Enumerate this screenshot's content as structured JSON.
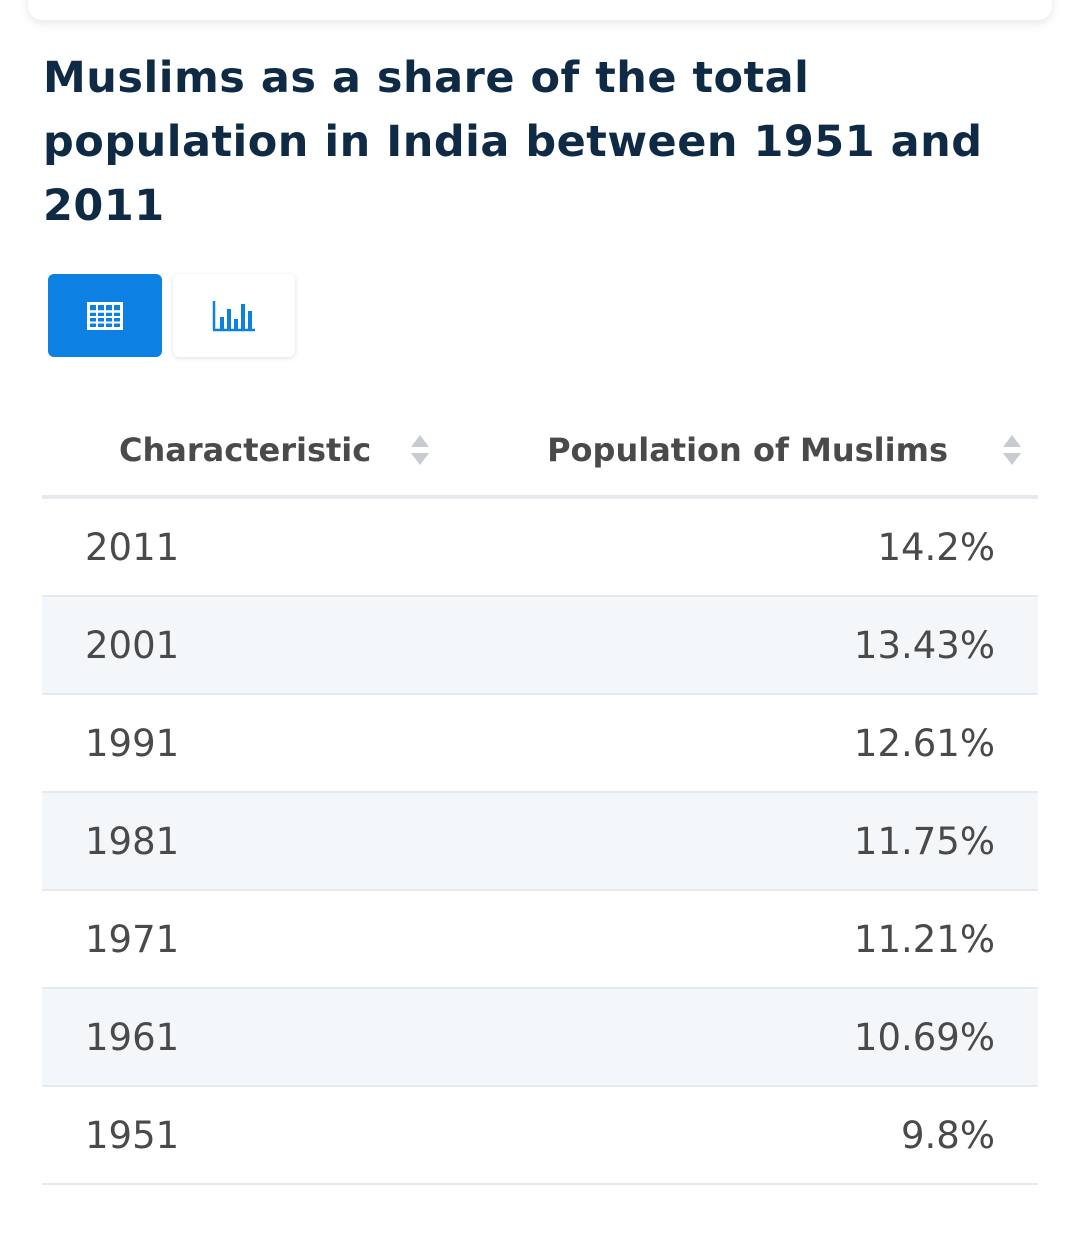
{
  "chart_data": {
    "type": "table",
    "title": "Muslims as a share of the total population in India between 1951 and 2011",
    "columns": [
      "Characteristic",
      "Population of Muslims"
    ],
    "categories": [
      "2011",
      "2001",
      "1991",
      "1981",
      "1971",
      "1961",
      "1951"
    ],
    "values": [
      14.2,
      13.43,
      12.61,
      11.75,
      11.21,
      10.69,
      9.8
    ],
    "rows": [
      {
        "year": "2011",
        "value": "14.2%"
      },
      {
        "year": "2001",
        "value": "13.43%"
      },
      {
        "year": "1991",
        "value": "12.61%"
      },
      {
        "year": "1981",
        "value": "11.75%"
      },
      {
        "year": "1971",
        "value": "11.21%"
      },
      {
        "year": "1961",
        "value": "10.69%"
      },
      {
        "year": "1951",
        "value": "9.8%"
      }
    ]
  },
  "view_toggle": {
    "active": "table",
    "table_icon": "table-icon",
    "chart_icon": "bar-chart-icon",
    "active_color": "#0d80e3"
  },
  "colors": {
    "title": "#0f2a44",
    "text": "#4a4a4a",
    "row_alt": "#f4f7fa",
    "border": "#e6e9ed"
  }
}
